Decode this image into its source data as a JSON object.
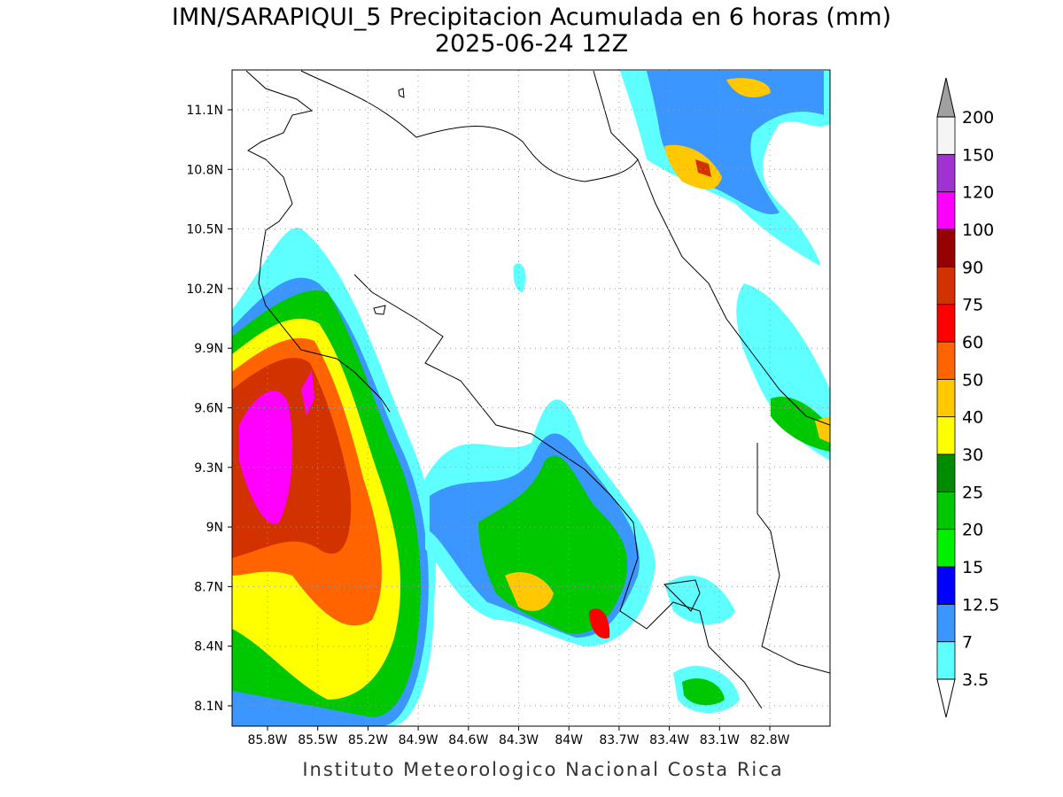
{
  "title": "IMN/SARAPIQUI_5 Precipitacion Acumulada en 6 horas (mm)",
  "subtitle": "2025-06-24 12Z",
  "map": {
    "lat_labels": [
      "11.1N",
      "10.8N",
      "10.5N",
      "10.2N",
      "9.9N",
      "9.6N",
      "9.3N",
      "9N",
      "8.7N",
      "8.4N",
      "8.1N"
    ],
    "lon_labels": [
      "85.8W",
      "85.5W",
      "85.2W",
      "84.9W",
      "84.6W",
      "84.3W",
      "84W",
      "83.7W",
      "83.4W",
      "83.1W",
      "82.8W"
    ]
  },
  "colorbar": {
    "levels": [
      3.5,
      7,
      12.5,
      15,
      20,
      25,
      30,
      40,
      50,
      60,
      75,
      90,
      100,
      120,
      150,
      200
    ],
    "colors": [
      "#5effff",
      "#3c96ff",
      "#0000ff",
      "#00f000",
      "#00c800",
      "#008c00",
      "#ffff00",
      "#ffc800",
      "#ff6400",
      "#ff0000",
      "#d23200",
      "#960000",
      "#ff00ff",
      "#a032d2",
      "#f5f5f5"
    ],
    "under_color": "#ffffff",
    "over_color": "#a0a0a0"
  },
  "footer": "Instituto Meteorologico Nacional Costa Rica"
}
